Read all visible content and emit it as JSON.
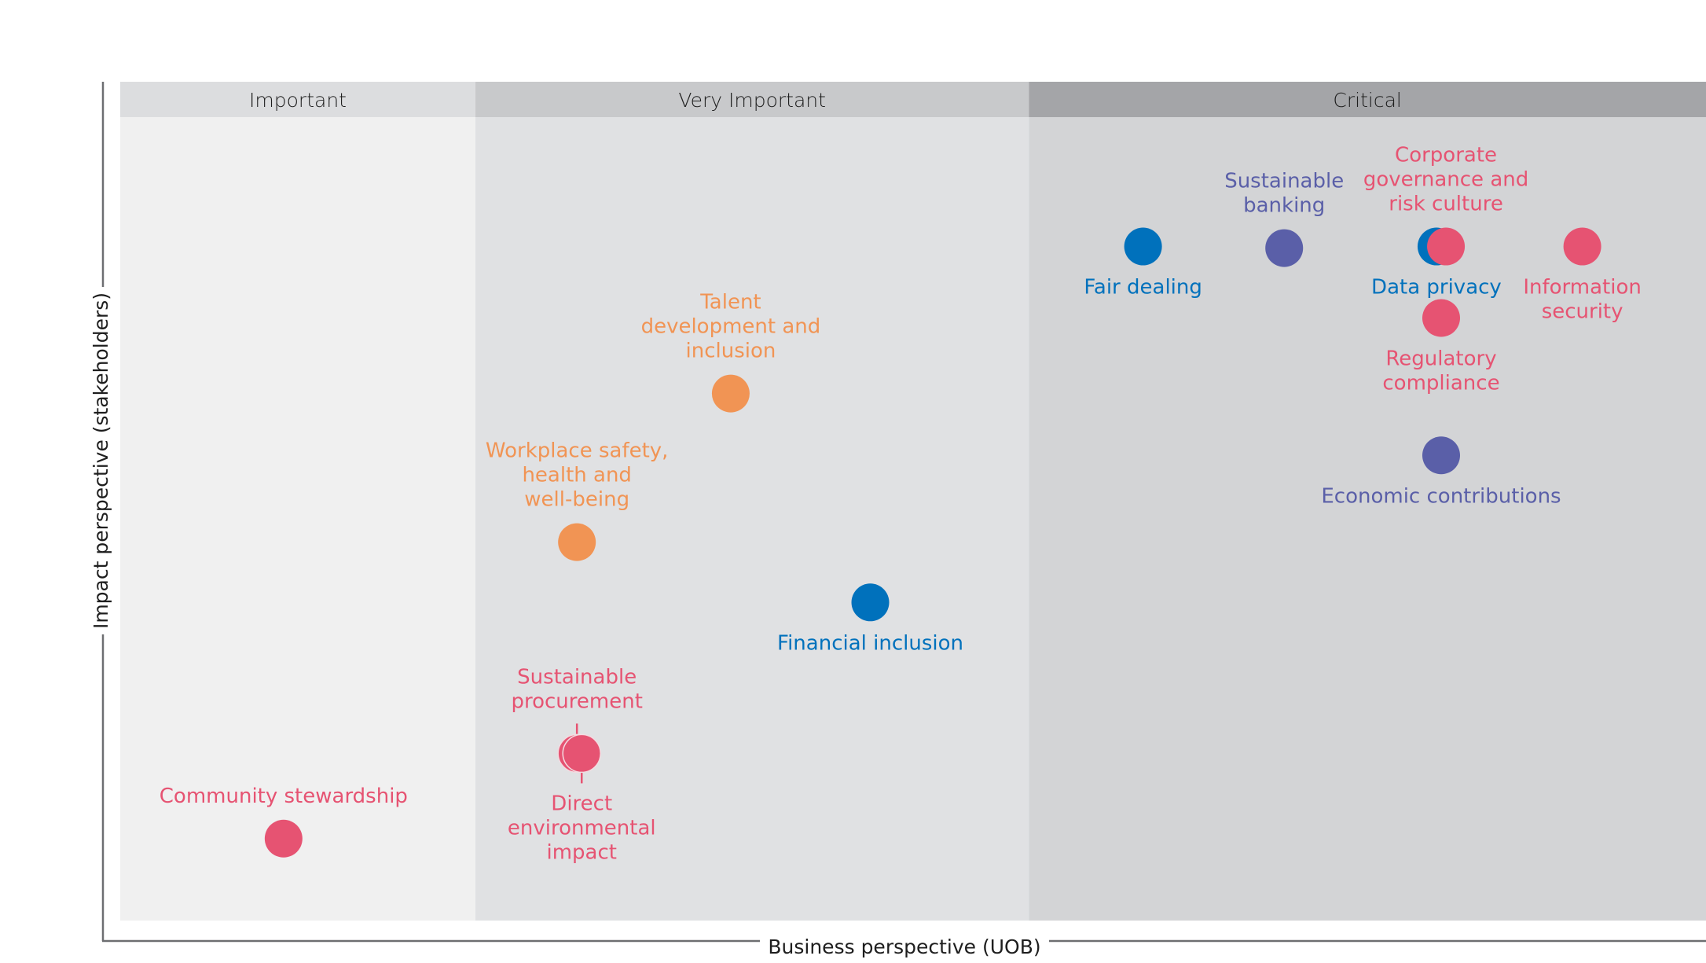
{
  "chart_data": {
    "type": "scatter",
    "title": "",
    "xlabel": "Business perspective (UOB)",
    "ylabel": "Impact perspective (stakeholders)",
    "xlim": [
      0,
      10
    ],
    "ylim": [
      0,
      10
    ],
    "grid": false,
    "zones": [
      {
        "label": "Important",
        "x_from": 0,
        "x_to": 2.24,
        "header_color": "#dcdddf",
        "body_color": "#f0f0f0"
      },
      {
        "label": "Very Important",
        "x_from": 2.24,
        "x_to": 5.73,
        "header_color": "#c8c9cb",
        "body_color": "#e0e1e3"
      },
      {
        "label": "Critical",
        "x_from": 5.73,
        "x_to": 10,
        "header_color": "#a4a5a8",
        "body_color": "#d3d4d6"
      }
    ],
    "categories": [
      {
        "name": "blue",
        "color": "#0071bc"
      },
      {
        "name": "purple",
        "color": "#5a5fa8"
      },
      {
        "name": "pink",
        "color": "#e65372"
      },
      {
        "name": "orange",
        "color": "#f19454"
      }
    ],
    "points": [
      {
        "label": [
          "Fair dealing"
        ],
        "x": 6.45,
        "y": 8.39,
        "color": "#0071bc",
        "label_pos": "below"
      },
      {
        "label": [
          "Sustainable",
          "banking"
        ],
        "x": 7.34,
        "y": 8.37,
        "color": "#5a5fa8",
        "label_pos": "above"
      },
      {
        "label": [
          "Data privacy"
        ],
        "x": 8.3,
        "y": 8.39,
        "color": "#0071bc",
        "label_pos": "below"
      },
      {
        "label": [
          "Corporate",
          "governance and",
          "risk culture"
        ],
        "x": 8.36,
        "y": 8.39,
        "color": "#e65372",
        "label_pos": "above"
      },
      {
        "label": [
          "Information",
          "security"
        ],
        "x": 9.22,
        "y": 8.39,
        "color": "#e65372",
        "label_pos": "below"
      },
      {
        "label": [
          "Regulatory",
          "compliance"
        ],
        "x": 8.33,
        "y": 7.5,
        "color": "#e65372",
        "label_pos": "below"
      },
      {
        "label": [
          "Economic contributions"
        ],
        "x": 8.33,
        "y": 5.79,
        "color": "#5a5fa8",
        "label_pos": "below"
      },
      {
        "label": [
          "Talent",
          "development and",
          "inclusion"
        ],
        "x": 3.85,
        "y": 6.56,
        "color": "#f19454",
        "label_pos": "above"
      },
      {
        "label": [
          "Workplace safety,",
          "health and",
          "well-being"
        ],
        "x": 2.88,
        "y": 4.71,
        "color": "#f19454",
        "label_pos": "above"
      },
      {
        "label": [
          "Financial inclusion"
        ],
        "x": 4.73,
        "y": 3.96,
        "color": "#0071bc",
        "label_pos": "below"
      },
      {
        "label": [
          "Sustainable",
          "procurement"
        ],
        "x": 2.88,
        "y": 2.08,
        "color": "#e65372",
        "label_pos": "above",
        "leader": true
      },
      {
        "label": [
          "Direct",
          "environmental",
          "impact"
        ],
        "x": 2.91,
        "y": 2.08,
        "color": "#e65372",
        "label_pos": "below",
        "leader": true
      },
      {
        "label": [
          "Community stewardship"
        ],
        "x": 1.03,
        "y": 1.02,
        "color": "#e65372",
        "label_pos": "above"
      }
    ]
  }
}
